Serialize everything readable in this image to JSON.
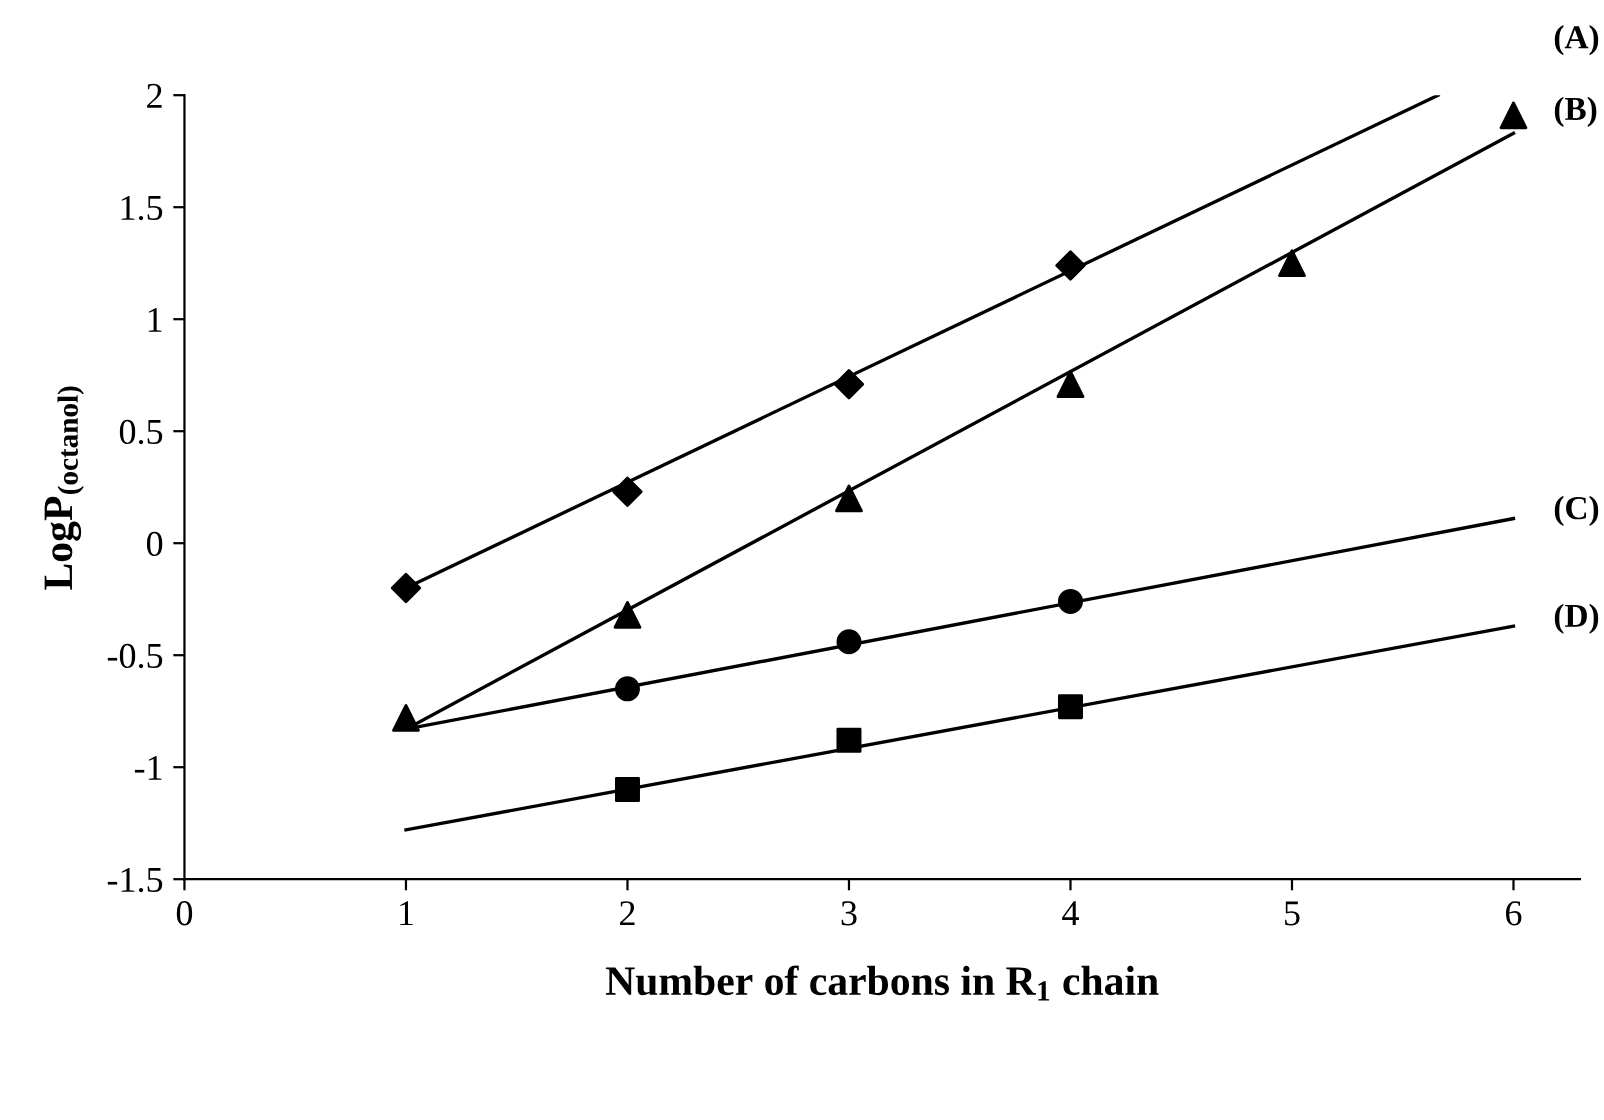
{
  "chart_data": {
    "type": "scatter",
    "xlabel": "Number of carbons in R$_{1}$ chain",
    "ylabel": "LogP$_{(octanol)}$",
    "xlim": [
      0,
      6.3
    ],
    "ylim": [
      -1.5,
      2
    ],
    "xticks": [
      0,
      1,
      2,
      3,
      4,
      5,
      6
    ],
    "yticks": [
      -1.5,
      -1,
      -0.5,
      0,
      0.5,
      1,
      1.5,
      2
    ],
    "grid": false,
    "legend": false,
    "series": [
      {
        "marker": "diamond",
        "color": "#000000",
        "x": [
          1,
          2,
          3,
          4
        ],
        "values": [
          -0.2,
          0.23,
          0.71,
          1.24
        ]
      },
      {
        "marker": "triangle",
        "color": "#000000",
        "x": [
          1,
          2,
          3,
          4,
          5,
          6
        ],
        "values": [
          -0.78,
          -0.32,
          0.2,
          0.71,
          1.25,
          1.91
        ]
      },
      {
        "marker": "circle",
        "color": "#000000",
        "x": [
          2,
          3,
          4
        ],
        "values": [
          -0.65,
          -0.44,
          -0.26
        ]
      },
      {
        "marker": "square",
        "color": "#000000",
        "x": [
          2,
          3,
          4
        ],
        "values": [
          -1.1,
          -0.88,
          -0.73
        ]
      },
      {
        "type": "line",
        "name": "(A)",
        "marker": "none",
        "line_style": "solid",
        "color": "#000000",
        "x": [
          1,
          5.66
        ],
        "values": [
          -0.2,
          2.0
        ]
      },
      {
        "type": "line",
        "name": "(B)",
        "marker": "none",
        "line_style": "solid",
        "color": "#000000",
        "x": [
          1,
          6
        ],
        "values": [
          -0.83,
          1.83
        ]
      },
      {
        "type": "line",
        "name": "(C)",
        "marker": "none",
        "line_style": "solid",
        "color": "#000000",
        "x": [
          1,
          6
        ],
        "values": [
          -0.83,
          0.11
        ]
      },
      {
        "type": "line",
        "name": "(D)",
        "marker": "none",
        "line_style": "solid",
        "color": "#000000",
        "x": [
          1,
          6
        ],
        "values": [
          -1.28,
          -0.37
        ]
      }
    ]
  }
}
